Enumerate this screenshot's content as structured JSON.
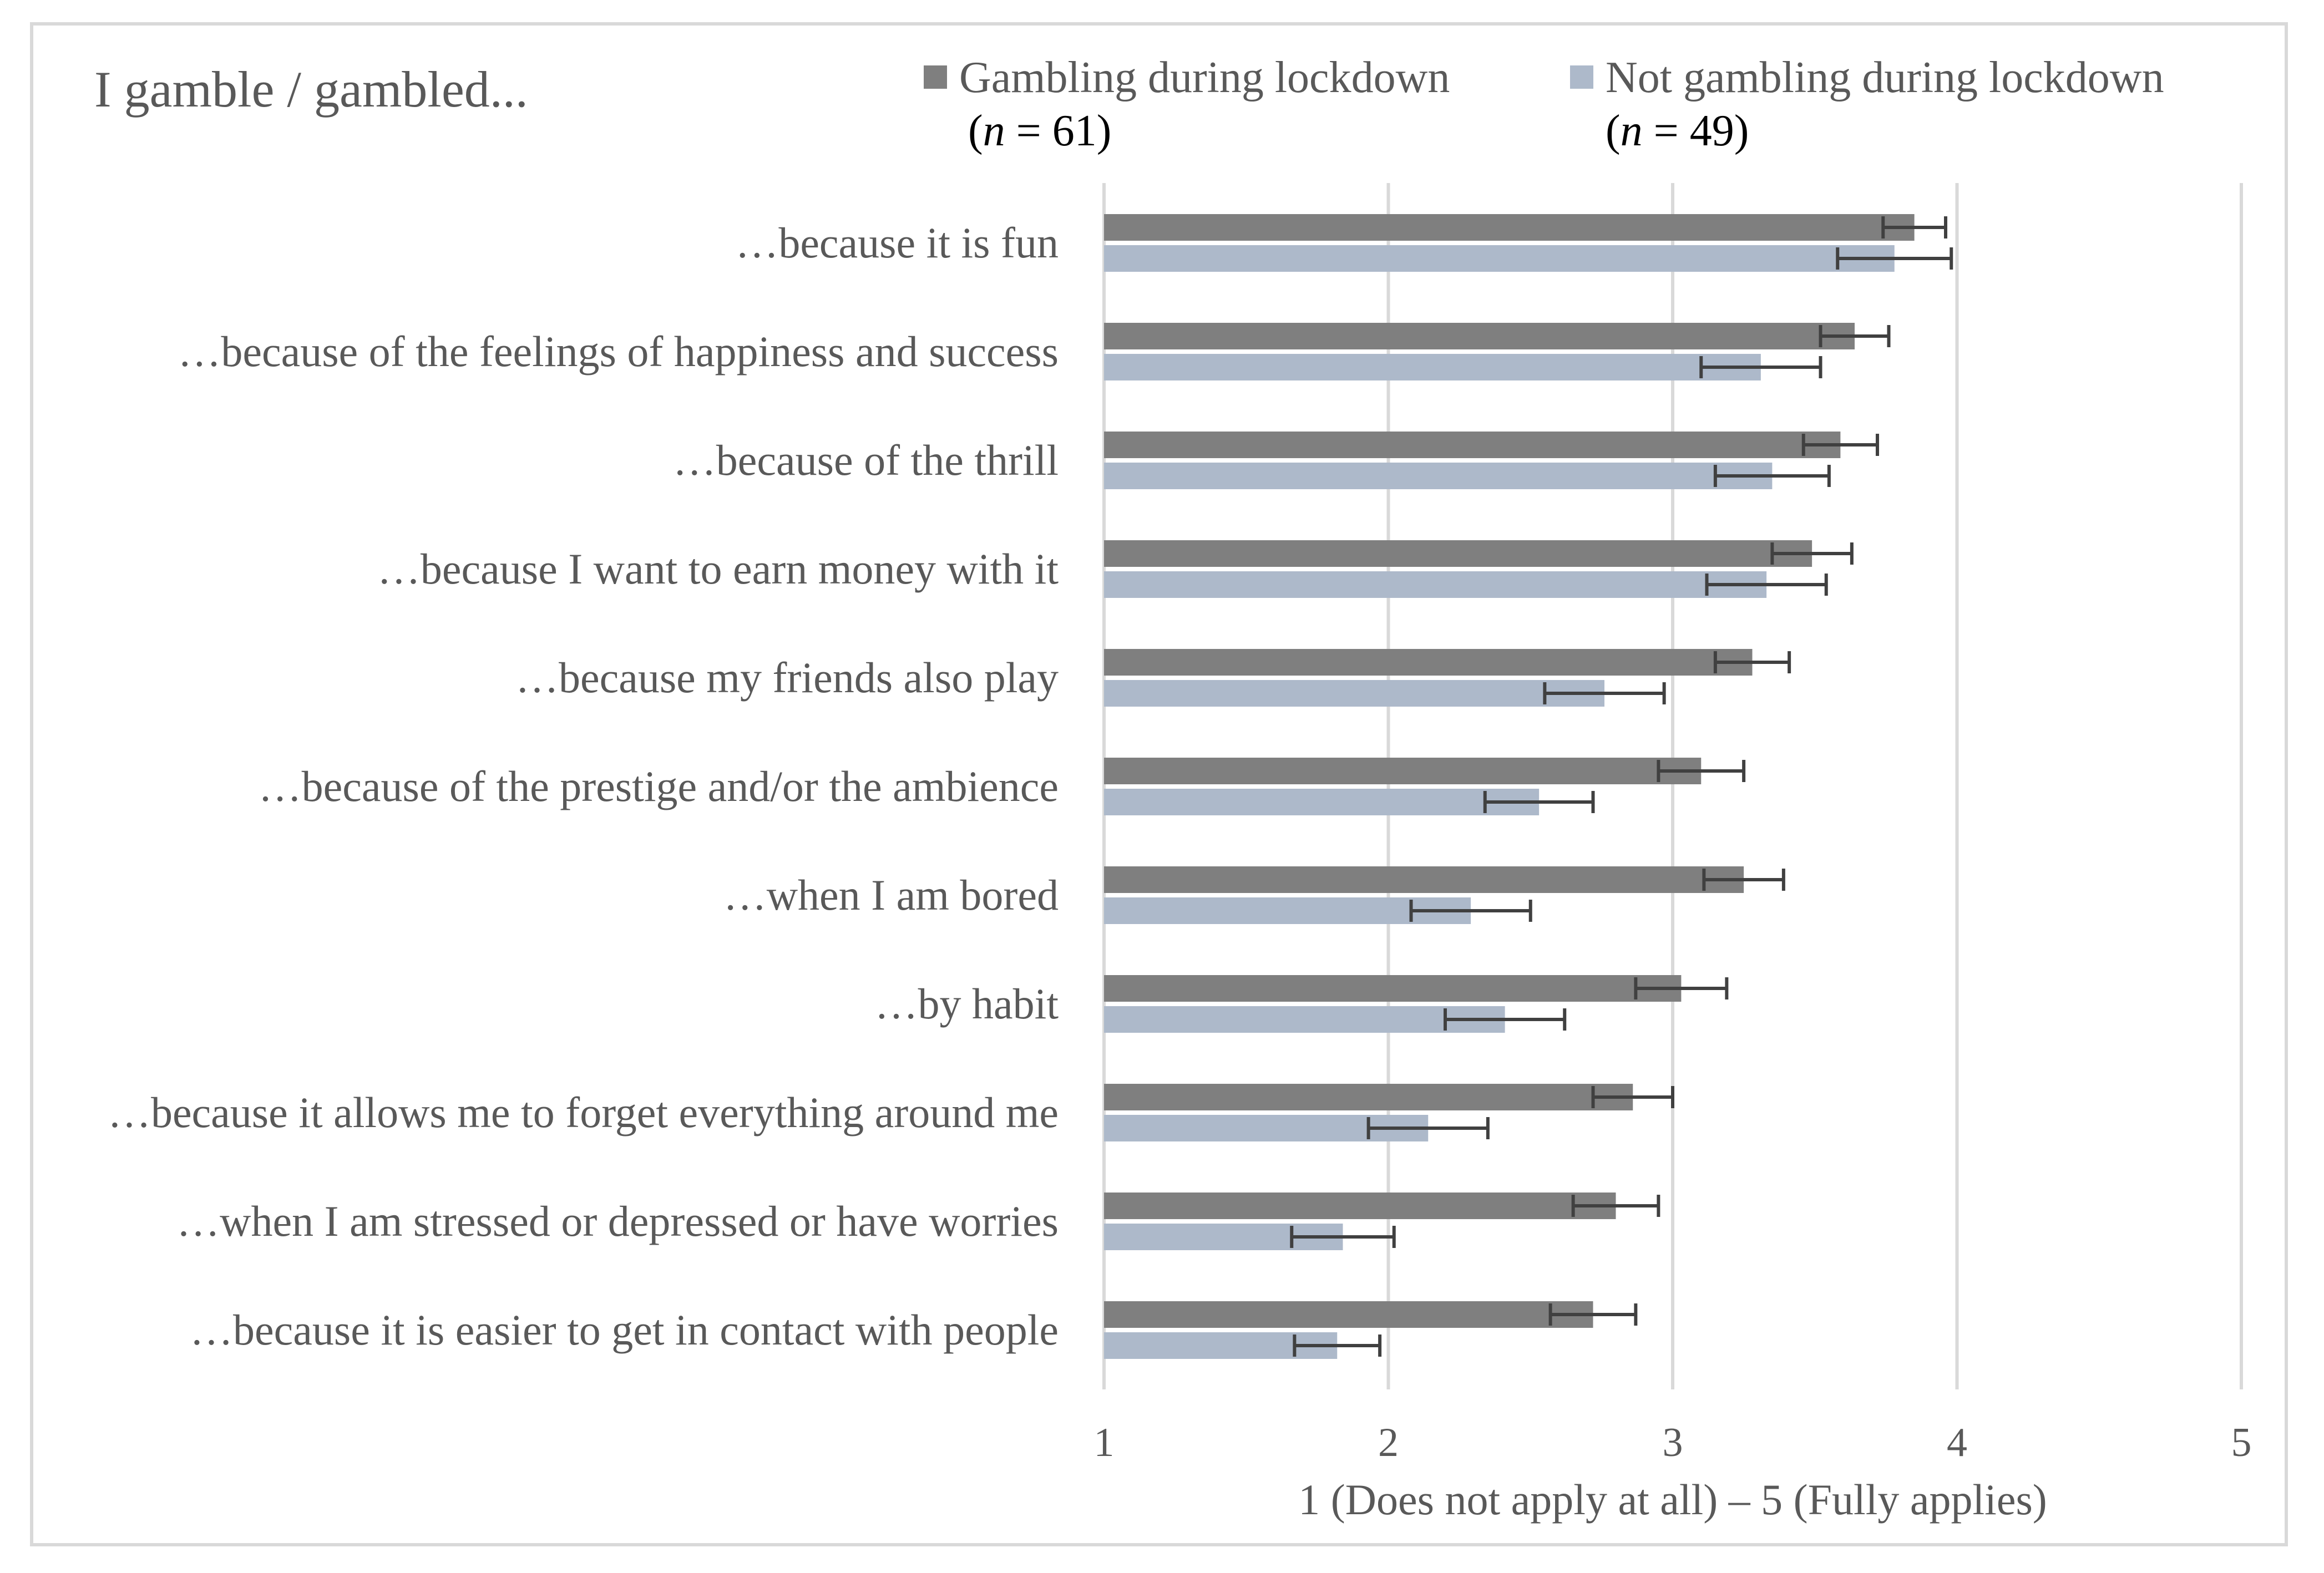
{
  "chart_data": {
    "type": "bar",
    "orientation": "horizontal",
    "title": "I gamble / gambled...",
    "xlabel": "1 (Does not apply at all) – 5 (Fully applies)",
    "ylabel": "",
    "xlim": [
      1,
      5
    ],
    "xticks": [
      "1",
      "2",
      "3",
      "4",
      "5"
    ],
    "grid": true,
    "legend_position": "top",
    "categories": [
      "…because it is fun",
      "…because of the feelings of happiness and success",
      "…because of the thrill",
      "…because I want to earn money with it",
      "…because my friends also play",
      "…because of the prestige and/or the ambience",
      "…when I am bored",
      "…by habit",
      "…because it allows me to forget everything around me",
      "…when I am stressed or depressed or have worries",
      "…because it is easier to get in contact with people"
    ],
    "series": [
      {
        "name": "Gambling during lockdown",
        "n_label": "61",
        "color": "#7f7f7f",
        "values": [
          3.85,
          3.64,
          3.59,
          3.49,
          3.28,
          3.1,
          3.25,
          3.03,
          2.86,
          2.8,
          2.72
        ],
        "errors": [
          0.11,
          0.12,
          0.13,
          0.14,
          0.13,
          0.15,
          0.14,
          0.16,
          0.14,
          0.15,
          0.15
        ]
      },
      {
        "name": "Not gambling during lockdown",
        "n_label": "49",
        "color": "#adb9ca",
        "values": [
          3.78,
          3.31,
          3.35,
          3.33,
          2.76,
          2.53,
          2.29,
          2.41,
          2.14,
          1.84,
          1.82
        ],
        "errors": [
          0.2,
          0.21,
          0.2,
          0.21,
          0.21,
          0.19,
          0.21,
          0.21,
          0.21,
          0.18,
          0.15
        ]
      }
    ]
  }
}
